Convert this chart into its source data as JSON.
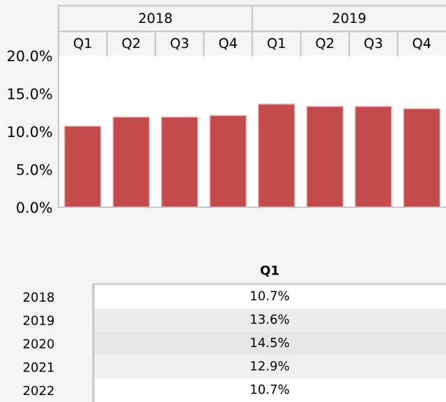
{
  "chart_data": [
    {
      "type": "bar",
      "categories": [
        "Q1",
        "Q2",
        "Q3",
        "Q4",
        "Q1",
        "Q2",
        "Q3",
        "Q4"
      ],
      "values": [
        10.7,
        11.9,
        11.9,
        12.1,
        13.6,
        13.3,
        13.3,
        13.0
      ],
      "color": "#c44a4c",
      "annotations": [
        "2018",
        "2019"
      ],
      "ylim": [
        0,
        20
      ],
      "yticks": [
        {
          "value": 0,
          "label": "0.0%"
        },
        {
          "value": 5,
          "label": "5.0%"
        },
        {
          "value": 10,
          "label": "10.0%"
        },
        {
          "value": 15,
          "label": "15.0%"
        },
        {
          "value": 20,
          "label": "20.0%"
        }
      ],
      "grid": false,
      "legend": false
    },
    {
      "type": "heatmap",
      "categories": [
        "Q1"
      ],
      "y_categories": [
        "2018",
        "2019",
        "2020",
        "2021",
        "2022"
      ],
      "cells": [
        [
          10.7
        ],
        [
          13.6
        ],
        [
          14.5
        ],
        [
          12.9
        ],
        [
          10.7
        ]
      ],
      "cell_labels": [
        [
          "10.7%"
        ],
        [
          "13.6%"
        ],
        [
          "14.5%"
        ],
        [
          "12.9%"
        ],
        [
          "10.7%"
        ]
      ],
      "color": "#ffffff"
    }
  ]
}
